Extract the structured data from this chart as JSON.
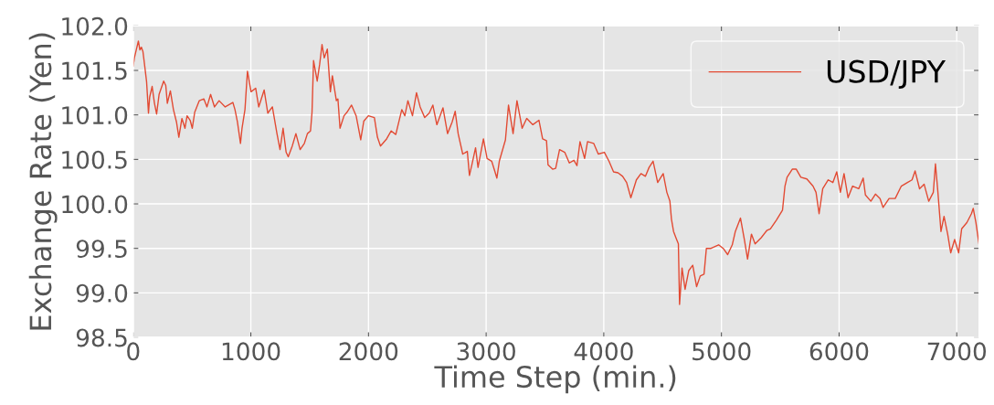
{
  "chart_data": {
    "type": "line",
    "xlabel": "Time Step (min.)",
    "ylabel": "Exchange Rate (Yen)",
    "xlim": [
      0,
      7190
    ],
    "xticks": [
      0,
      1000,
      2000,
      3000,
      4000,
      5000,
      6000,
      7000
    ],
    "ylim": [
      98.5,
      102.0
    ],
    "yticks": [
      {
        "value": 98.5,
        "label": "98.5"
      },
      {
        "value": 99.0,
        "label": "99.0"
      },
      {
        "value": 99.5,
        "label": "99.5"
      },
      {
        "value": 100.0,
        "label": "100.0"
      },
      {
        "value": 100.5,
        "label": "100.5"
      },
      {
        "value": 101.0,
        "label": "101.0"
      },
      {
        "value": 101.5,
        "label": "101.5"
      },
      {
        "value": 102.0,
        "label": "102.0"
      }
    ],
    "grid": true,
    "legend": "top right",
    "line_style": "solid",
    "series": [
      {
        "name": "USD/JPY",
        "color": "#e24a33",
        "x": [
          0,
          10,
          44,
          57,
          70,
          83,
          96,
          114,
          130,
          140,
          161,
          181,
          199,
          220,
          259,
          277,
          290,
          316,
          342,
          368,
          388,
          414,
          440,
          458,
          484,
          502,
          523,
          562,
          601,
          627,
          658,
          691,
          730,
          782,
          847,
          865,
          886,
          912,
          925,
          950,
          971,
          1002,
          1041,
          1067,
          1113,
          1144,
          1183,
          1222,
          1248,
          1274,
          1300,
          1318,
          1352,
          1383,
          1419,
          1455,
          1481,
          1507,
          1520,
          1533,
          1564,
          1585,
          1605,
          1624,
          1650,
          1676,
          1693,
          1727,
          1740,
          1758,
          1792,
          1817,
          1856,
          1895,
          1934,
          1960,
          1999,
          2050,
          2076,
          2102,
          2154,
          2193,
          2232,
          2283,
          2309,
          2335,
          2374,
          2408,
          2439,
          2478,
          2516,
          2547,
          2581,
          2633,
          2672,
          2711,
          2737,
          2762,
          2801,
          2840,
          2858,
          2879,
          2910,
          2931,
          2977,
          3008,
          3047,
          3073,
          3091,
          3112,
          3164,
          3190,
          3229,
          3262,
          3306,
          3345,
          3397,
          3449,
          3480,
          3513,
          3526,
          3565,
          3591,
          3624,
          3668,
          3707,
          3746,
          3772,
          3798,
          3837,
          3862,
          3914,
          3953,
          4005,
          4044,
          4083,
          4121,
          4160,
          4194,
          4230,
          4277,
          4316,
          4354,
          4385,
          4419,
          4458,
          4505,
          4536,
          4562,
          4575,
          4593,
          4613,
          4634,
          4644,
          4665,
          4691,
          4722,
          4756,
          4789,
          4820,
          4852,
          4872,
          4911,
          4976,
          5015,
          5053,
          5092,
          5118,
          5162,
          5196,
          5222,
          5255,
          5286,
          5338,
          5385,
          5416,
          5468,
          5519,
          5540,
          5558,
          5602,
          5636,
          5675,
          5726,
          5778,
          5804,
          5830,
          5861,
          5908,
          5947,
          5980,
          6011,
          6042,
          6076,
          6115,
          6167,
          6205,
          6224,
          6270,
          6309,
          6348,
          6374,
          6425,
          6477,
          6529,
          6581,
          6620,
          6646,
          6684,
          6723,
          6762,
          6801,
          6819,
          6840,
          6866,
          6892,
          6923,
          6949,
          6982,
          7016,
          7042,
          7086,
          7125,
          7140,
          7163,
          7189
        ],
        "values": [
          101.55,
          101.64,
          101.83,
          101.73,
          101.76,
          101.71,
          101.57,
          101.37,
          101.02,
          101.2,
          101.32,
          101.13,
          101.01,
          101.23,
          101.38,
          101.33,
          101.13,
          101.27,
          101.06,
          100.92,
          100.75,
          100.96,
          100.85,
          100.99,
          100.94,
          100.85,
          101.03,
          101.16,
          101.18,
          101.09,
          101.23,
          101.09,
          101.16,
          101.09,
          101.14,
          101.06,
          100.92,
          100.68,
          100.85,
          101.06,
          101.49,
          101.26,
          101.3,
          101.09,
          101.28,
          101.02,
          101.09,
          100.79,
          100.61,
          100.85,
          100.58,
          100.53,
          100.65,
          100.79,
          100.61,
          100.68,
          100.79,
          100.82,
          101.03,
          101.61,
          101.38,
          101.57,
          101.79,
          101.64,
          101.74,
          101.26,
          101.44,
          101.16,
          101.18,
          100.85,
          100.99,
          101.03,
          101.11,
          100.99,
          100.72,
          100.93,
          100.99,
          100.97,
          100.75,
          100.65,
          100.73,
          100.82,
          100.78,
          101.06,
          100.99,
          101.16,
          100.99,
          101.25,
          101.09,
          100.97,
          101.02,
          101.11,
          100.89,
          101.08,
          100.79,
          100.92,
          101.04,
          100.79,
          100.56,
          100.59,
          100.32,
          100.44,
          100.63,
          100.41,
          100.73,
          100.51,
          100.48,
          100.37,
          100.29,
          100.48,
          100.72,
          101.11,
          100.79,
          101.16,
          100.85,
          100.96,
          100.89,
          100.94,
          100.73,
          100.71,
          100.44,
          100.39,
          100.4,
          100.61,
          100.58,
          100.46,
          100.49,
          100.43,
          100.7,
          100.51,
          100.7,
          100.68,
          100.56,
          100.58,
          100.48,
          100.36,
          100.35,
          100.31,
          100.24,
          100.07,
          100.27,
          100.34,
          100.31,
          100.41,
          100.48,
          100.24,
          100.34,
          100.13,
          100.03,
          99.83,
          99.69,
          99.62,
          99.55,
          98.87,
          99.28,
          99.04,
          99.25,
          99.31,
          99.07,
          99.19,
          99.21,
          99.5,
          99.5,
          99.54,
          99.5,
          99.43,
          99.54,
          99.69,
          99.84,
          99.59,
          99.38,
          99.66,
          99.55,
          99.62,
          99.7,
          99.72,
          99.82,
          99.93,
          100.2,
          100.3,
          100.39,
          100.39,
          100.3,
          100.28,
          100.2,
          100.13,
          99.89,
          100.17,
          100.27,
          100.24,
          100.36,
          100.13,
          100.34,
          100.07,
          100.2,
          100.17,
          100.29,
          100.1,
          100.03,
          100.11,
          100.06,
          99.96,
          100.06,
          100.06,
          100.2,
          100.24,
          100.27,
          100.37,
          100.17,
          100.22,
          100.03,
          100.13,
          100.45,
          100.13,
          99.69,
          99.86,
          99.66,
          99.45,
          99.6,
          99.45,
          99.72,
          99.79,
          99.89,
          99.95,
          99.79,
          99.55
        ]
      }
    ]
  }
}
